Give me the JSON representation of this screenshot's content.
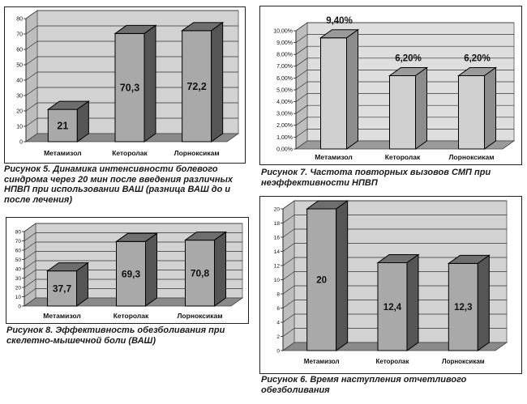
{
  "figures": [
    {
      "id": "fig5",
      "caption_lines": [
        "Рисунок 5. Динамика интенсивности болевого",
        "синдрома через 20 мин после введения различных",
        "НПВП при использовании ВАШ (разница ВАШ до и",
        "после лечения)"
      ]
    },
    {
      "id": "fig7",
      "caption_lines": [
        "Рисунок 7. Частота повторных вызовов СМП при",
        "неэффективности НПВП"
      ]
    },
    {
      "id": "fig8",
      "caption_lines": [
        "Рисунок 8. Эффективность обезболивания при",
        "скелетно-мышечной боли (ВАШ)"
      ]
    },
    {
      "id": "fig6",
      "caption_lines": [
        "Рисунок 6. Время наступления отчетливого",
        "обезболивания"
      ]
    }
  ],
  "chart_data": [
    {
      "figure": "fig5",
      "type": "bar",
      "style": "3d",
      "categories": [
        "Метамизол",
        "Кеторолак",
        "Лорноксикам"
      ],
      "values": [
        21,
        70.3,
        72.2
      ],
      "value_labels": [
        "21",
        "70,3",
        "72,2"
      ],
      "ylim": [
        0,
        80
      ],
      "yticks": [
        0,
        10,
        20,
        30,
        40,
        50,
        60,
        70,
        80
      ],
      "ytick_labels": [
        "0",
        "10",
        "20",
        "30",
        "40",
        "50",
        "60",
        "70",
        "80"
      ],
      "value_label_position": "inside",
      "grid": true,
      "colors": {
        "bar_front": "#a9a9a9",
        "bar_top": "#6e6e6e",
        "bar_side": "#555555",
        "wall": "#d2d2d2",
        "floor": "#8a8a8a"
      }
    },
    {
      "figure": "fig7",
      "type": "bar",
      "style": "3d",
      "categories": [
        "Метамизол",
        "Кеторолак",
        "Лорноксикам"
      ],
      "values": [
        9.4,
        6.2,
        6.2
      ],
      "value_labels": [
        "9,40%",
        "6,20%",
        "6,20%"
      ],
      "ylim": [
        0,
        10
      ],
      "yticks": [
        0,
        1,
        2,
        3,
        4,
        5,
        6,
        7,
        8,
        9,
        10
      ],
      "ytick_labels": [
        "0,00%",
        "1,00%",
        "2,00%",
        "3,00%",
        "4,00%",
        "5,00%",
        "6,00%",
        "7,00%",
        "8,00%",
        "9,00%",
        "10,00%"
      ],
      "value_label_position": "above",
      "grid": true,
      "colors": {
        "bar_front": "#d0d0d0",
        "bar_top": "#9a9a9a",
        "bar_side": "#8c8c8c",
        "wall": "#dedede",
        "floor": "#9a9a9a"
      }
    },
    {
      "figure": "fig8",
      "type": "bar",
      "style": "3d",
      "categories": [
        "Метамизол",
        "Кеторолак",
        "Лорноксикам"
      ],
      "values": [
        37.7,
        69.3,
        70.8
      ],
      "value_labels": [
        "37,7",
        "69,3",
        "70,8"
      ],
      "ylim": [
        0,
        80
      ],
      "yticks": [
        0,
        10,
        20,
        30,
        40,
        50,
        60,
        70,
        80
      ],
      "ytick_labels": [
        "0",
        "10",
        "20",
        "30",
        "40",
        "50",
        "60",
        "70",
        "80"
      ],
      "value_label_position": "inside",
      "grid": true,
      "colors": {
        "bar_front": "#a9a9a9",
        "bar_top": "#6e6e6e",
        "bar_side": "#555555",
        "wall": "#d2d2d2",
        "floor": "#8a8a8a"
      }
    },
    {
      "figure": "fig6",
      "type": "bar",
      "style": "3d",
      "categories": [
        "Метамизол",
        "Кеторолак",
        "Лорноксикам"
      ],
      "values": [
        20,
        12.4,
        12.3
      ],
      "value_labels": [
        "20",
        "12,4",
        "12,3"
      ],
      "ylim": [
        0,
        20
      ],
      "yticks": [
        0,
        2,
        4,
        6,
        8,
        10,
        12,
        14,
        16,
        18,
        20
      ],
      "ytick_labels": [
        "0",
        "2",
        "4",
        "6",
        "8",
        "10",
        "12",
        "14",
        "16",
        "18",
        "20"
      ],
      "value_label_position": "inside",
      "grid": true,
      "colors": {
        "bar_front": "#a9a9a9",
        "bar_top": "#6e6e6e",
        "bar_side": "#555555",
        "wall": "#d2d2d2",
        "floor": "#8a8a8a"
      }
    }
  ]
}
